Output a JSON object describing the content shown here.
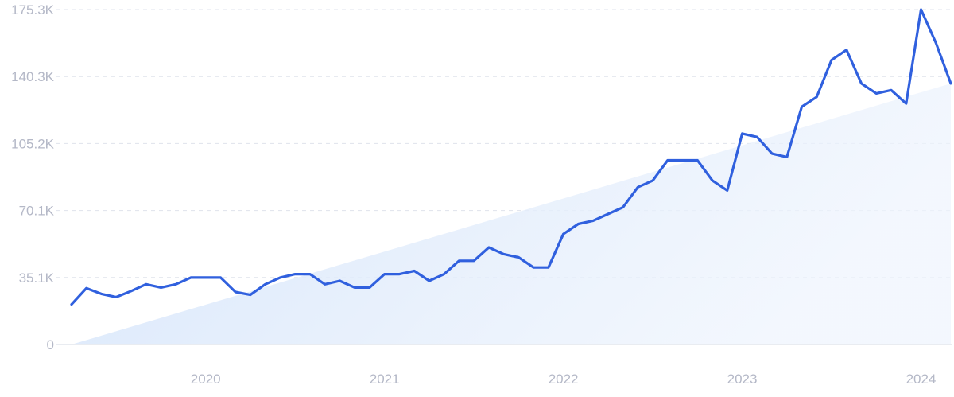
{
  "chart_data": {
    "type": "line",
    "title": "",
    "xlabel": "",
    "ylabel": "",
    "ylim": [
      0,
      175300
    ],
    "y_ticks": [
      {
        "value": 0,
        "label": "0"
      },
      {
        "value": 35060,
        "label": "35.1K"
      },
      {
        "value": 70120,
        "label": "70.1K"
      },
      {
        "value": 105180,
        "label": "105.2K"
      },
      {
        "value": 140240,
        "label": "140.3K"
      },
      {
        "value": 175300,
        "label": "175.3K"
      }
    ],
    "x_range": [
      "2019-04",
      "2024-03"
    ],
    "x_ticks": [
      {
        "value": "2020-01",
        "label": "2020"
      },
      {
        "value": "2021-01",
        "label": "2021"
      },
      {
        "value": "2022-01",
        "label": "2022"
      },
      {
        "value": "2023-01",
        "label": "2023"
      },
      {
        "value": "2024-01",
        "label": "2024"
      }
    ],
    "grid": true,
    "legend": "none",
    "colors": {
      "line": "#3060de",
      "trend_fill": "#dbe9fb",
      "grid": "#dfe3ec",
      "tick_text": "#b4b8c7"
    },
    "series": [
      {
        "x": [
          "2019-04",
          "2019-05",
          "2019-06",
          "2019-07",
          "2019-08",
          "2019-09",
          "2019-10",
          "2019-11",
          "2019-12",
          "2020-01",
          "2020-02",
          "2020-03",
          "2020-04",
          "2020-05",
          "2020-06",
          "2020-07",
          "2020-08",
          "2020-09",
          "2020-10",
          "2020-11",
          "2020-12",
          "2021-01",
          "2021-02",
          "2021-03",
          "2021-04",
          "2021-05",
          "2021-06",
          "2021-07",
          "2021-08",
          "2021-09",
          "2021-10",
          "2021-11",
          "2021-12",
          "2022-01",
          "2022-02",
          "2022-03",
          "2022-04",
          "2022-05",
          "2022-06",
          "2022-07",
          "2022-08",
          "2022-09",
          "2022-10",
          "2022-11",
          "2022-12",
          "2023-01",
          "2023-02",
          "2023-03",
          "2023-04",
          "2023-05",
          "2023-06",
          "2023-07",
          "2023-08",
          "2023-09",
          "2023-10",
          "2023-11",
          "2023-12",
          "2024-01",
          "2024-02",
          "2024-03"
        ],
        "values": [
          21000,
          29500,
          26500,
          24800,
          28000,
          31500,
          29800,
          31500,
          35000,
          35000,
          35000,
          27500,
          26000,
          31500,
          35000,
          36800,
          36800,
          31500,
          33300,
          29800,
          29800,
          36800,
          36800,
          38500,
          33300,
          36800,
          43800,
          43800,
          50800,
          47300,
          45600,
          40300,
          40300,
          57800,
          63100,
          64800,
          68300,
          71800,
          82300,
          85800,
          96400,
          96400,
          96400,
          85800,
          80600,
          110400,
          108600,
          99900,
          98100,
          124400,
          129600,
          148900,
          154200,
          136600,
          131400,
          133100,
          126100,
          175300,
          157800,
          136600
        ]
      },
      {
        "x": [
          "2019-04",
          "2024-03"
        ],
        "values": [
          0,
          136600
        ]
      }
    ]
  }
}
